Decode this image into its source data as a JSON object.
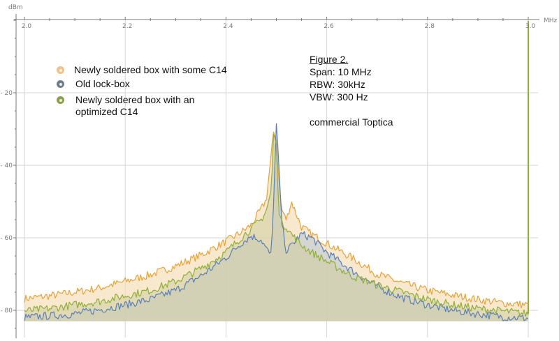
{
  "chart_data": {
    "type": "area",
    "title": "Figure 2.",
    "xlabel": "MHz",
    "ylabel": "dBm",
    "xlim": [
      2.0,
      3.0
    ],
    "ylim": [
      -85,
      0
    ],
    "x_ticks": [
      "2.0",
      "2.2",
      "2.4",
      "2.6",
      "2.8",
      "3.0"
    ],
    "y_ticks": [
      "- 20",
      "- 40",
      "- 60",
      "- 80"
    ],
    "grid": true,
    "fill_baseline": -83,
    "x": [
      2.0,
      2.05,
      2.1,
      2.15,
      2.2,
      2.25,
      2.3,
      2.35,
      2.4,
      2.43,
      2.45,
      2.47,
      2.48,
      2.49,
      2.495,
      2.5,
      2.505,
      2.51,
      2.52,
      2.53,
      2.55,
      2.57,
      2.6,
      2.65,
      2.7,
      2.75,
      2.8,
      2.85,
      2.9,
      2.95,
      3.0
    ],
    "series": [
      {
        "name": "Newly soldered box with some C14",
        "color": "#e8a23a",
        "fill": "#f5dcb4",
        "values": [
          -76.8,
          -76.0,
          -75.0,
          -73.8,
          -72.0,
          -70.2,
          -67.8,
          -64.8,
          -61.0,
          -58.5,
          -56.5,
          -52.0,
          -49.5,
          -37.0,
          -30.0,
          -33.0,
          -44.0,
          -52.0,
          -55.0,
          -50.0,
          -57.0,
          -59.0,
          -61.5,
          -65.5,
          -70.0,
          -72.5,
          -74.5,
          -75.8,
          -77.0,
          -78.0,
          -78.5
        ]
      },
      {
        "name": "Old lock-box",
        "color": "#5a7fb5",
        "fill": "#b8c4d4",
        "values": [
          -82.0,
          -81.5,
          -81.0,
          -79.8,
          -78.5,
          -77.0,
          -74.5,
          -70.5,
          -65.5,
          -61.5,
          -59.5,
          -60.5,
          -63.0,
          -65.0,
          -48.0,
          -29.0,
          -40.0,
          -55.0,
          -64.0,
          -62.0,
          -59.0,
          -60.0,
          -64.0,
          -69.0,
          -73.5,
          -76.5,
          -78.5,
          -80.0,
          -81.0,
          -81.8,
          -82.2
        ]
      },
      {
        "name": "Newly soldered box with an optimized C14",
        "color": "#8fae3a",
        "fill": "#cfce9e",
        "values": [
          -80.2,
          -79.5,
          -78.5,
          -77.5,
          -76.0,
          -74.5,
          -72.0,
          -68.5,
          -64.0,
          -60.0,
          -57.5,
          -55.0,
          -52.5,
          -47.0,
          -30.0,
          -35.0,
          -52.0,
          -56.0,
          -57.0,
          -59.0,
          -62.0,
          -64.0,
          -66.5,
          -70.5,
          -73.0,
          -75.0,
          -77.0,
          -78.5,
          -79.5,
          -80.2,
          -81.0
        ]
      }
    ],
    "annotations": {
      "spike_at_3_0": "vertical green line from -81 up to top of plot at 3.0 MHz"
    }
  },
  "axes": {
    "y_unit": "dBm",
    "x_unit": "MHz",
    "x_tick_labels": [
      "2.0",
      "2.2",
      "2.4",
      "2.6",
      "2.8",
      "3.0"
    ],
    "y_tick_labels": [
      "- 20",
      "- 40",
      "- 60",
      "- 80"
    ]
  },
  "legend": {
    "items": [
      {
        "label": "Newly soldered box with some C14",
        "color": "#f4c083"
      },
      {
        "label": "Old lock-box",
        "color": "#6e7f8c"
      },
      {
        "label": "Newly soldered box with an optimized C14",
        "color": "#8aa04a"
      }
    ]
  },
  "notes": {
    "title": "Figure 2.",
    "span": "Span: 10 MHz",
    "rbw": "RBW: 30kHz",
    "vbw": "VBW: 300 Hz",
    "source": "commercial Toptica"
  }
}
